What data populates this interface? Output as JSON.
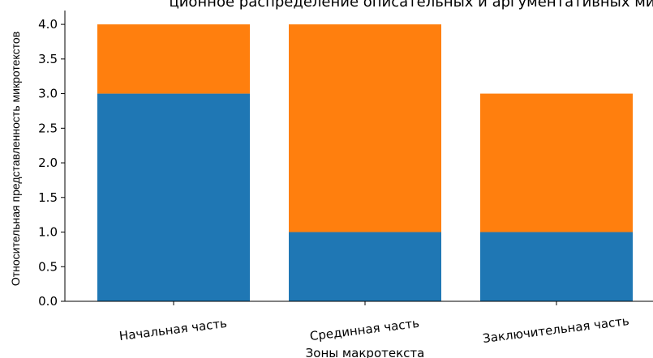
{
  "chart_data": {
    "type": "bar",
    "stacked": true,
    "title": "ционное распределение описательных и аргументативных ми",
    "xlabel": "Зоны макротекста",
    "ylabel": "Относительная представленность микротекстов",
    "categories": [
      "Начальная часть",
      "Срединная часть",
      "Заключительная часть"
    ],
    "series": [
      {
        "color": "#1f77b4",
        "values": [
          3,
          1,
          1
        ]
      },
      {
        "color": "#ff7f0e",
        "values": [
          1,
          3,
          2
        ]
      }
    ],
    "ylim": [
      0,
      4.2
    ],
    "yticks": [
      "0.0",
      "0.5",
      "1.0",
      "1.5",
      "2.0",
      "2.5",
      "3.0",
      "3.5",
      "4.0"
    ],
    "grid": false
  }
}
